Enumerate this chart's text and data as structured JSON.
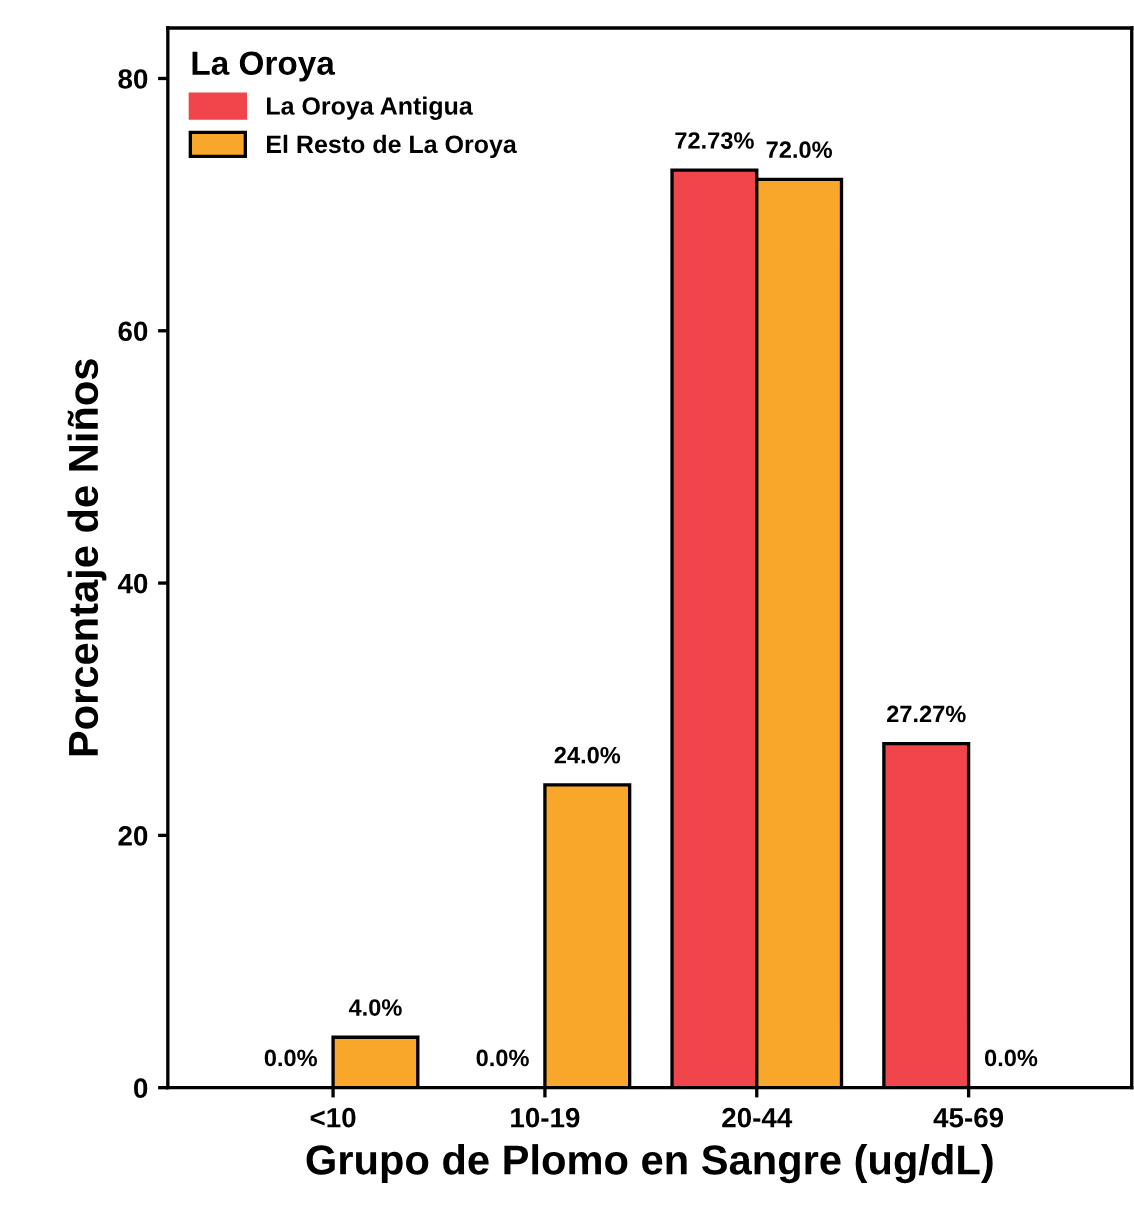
{
  "chart_data": {
    "type": "bar",
    "xlabel": "Grupo de Plomo en Sangre (ug/dL)",
    "ylabel": "Porcentaje de Niños",
    "legend_title": "La Oroya",
    "categories": [
      "<10",
      "10-19",
      "20-44",
      "45-69"
    ],
    "series": [
      {
        "name": "La Oroya Antigua",
        "color": "#f0454a",
        "values": [
          0.0,
          0.0,
          72.73,
          27.27
        ],
        "value_labels": [
          "0.0%",
          "0.0%",
          "72.73%",
          "27.27%"
        ]
      },
      {
        "name": "El Resto de La Oroya",
        "color": "#f9a72b",
        "values": [
          4.0,
          24.0,
          72.0,
          0.0
        ],
        "value_labels": [
          "4.0%",
          "24.0%",
          "72.0%",
          "0.0%"
        ]
      }
    ],
    "ylim": [
      0,
      84
    ],
    "yticks": [
      0,
      20,
      40,
      60,
      80
    ],
    "grid": false,
    "legend": "top left"
  }
}
